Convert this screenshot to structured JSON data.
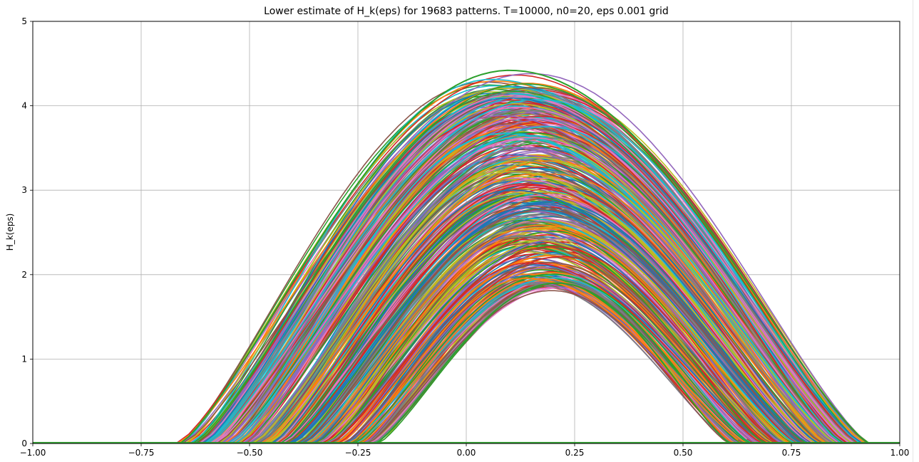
{
  "chart_data": {
    "type": "line",
    "title": "Lower estimate of H_k(eps) for 19683 patterns. T=10000, n0=20, eps 0.001 grid",
    "xlabel": "",
    "ylabel": "H_k(eps)",
    "xlim": [
      -1.0,
      1.0
    ],
    "ylim": [
      0,
      5
    ],
    "xticks": [
      -1.0,
      -0.75,
      -0.5,
      -0.25,
      0.0,
      0.25,
      0.5,
      0.75,
      1.0
    ],
    "xtick_labels": [
      "−1.00",
      "−0.75",
      "−0.50",
      "−0.25",
      "0.00",
      "0.25",
      "0.50",
      "0.75",
      "1.00"
    ],
    "yticks": [
      0,
      1,
      2,
      3,
      4,
      5
    ],
    "ytick_labels": [
      "0",
      "1",
      "2",
      "3",
      "4",
      "5"
    ],
    "grid": true,
    "legend": "none",
    "palette": [
      "#1f77b4",
      "#ff7f0e",
      "#2ca02c",
      "#d62728",
      "#9467bd",
      "#8c564b",
      "#e377c2",
      "#7f7f7f",
      "#bcbd22",
      "#17becf"
    ],
    "envelope": {
      "upper_peak": {
        "x": 0.1,
        "y": 4.42
      },
      "lower_peak": {
        "x": 0.21,
        "y": 1.9
      },
      "leftmost_zero": -0.66,
      "rightmost_zero": 0.93
    },
    "representative_series": [
      {
        "x0": -0.66,
        "x1": 0.93,
        "peak": 4.42
      },
      {
        "x0": -0.6,
        "x1": 0.9,
        "peak": 4.2
      },
      {
        "x0": -0.55,
        "x1": 0.87,
        "peak": 3.9
      },
      {
        "x0": -0.5,
        "x1": 0.85,
        "peak": 3.6
      },
      {
        "x0": -0.45,
        "x1": 0.8,
        "peak": 3.2
      },
      {
        "x0": -0.4,
        "x1": 0.78,
        "peak": 2.9
      },
      {
        "x0": -0.33,
        "x1": 0.72,
        "peak": 2.5
      },
      {
        "x0": -0.27,
        "x1": 0.66,
        "peak": 2.1
      },
      {
        "x0": -0.21,
        "x1": 0.61,
        "peak": 1.9
      }
    ]
  }
}
